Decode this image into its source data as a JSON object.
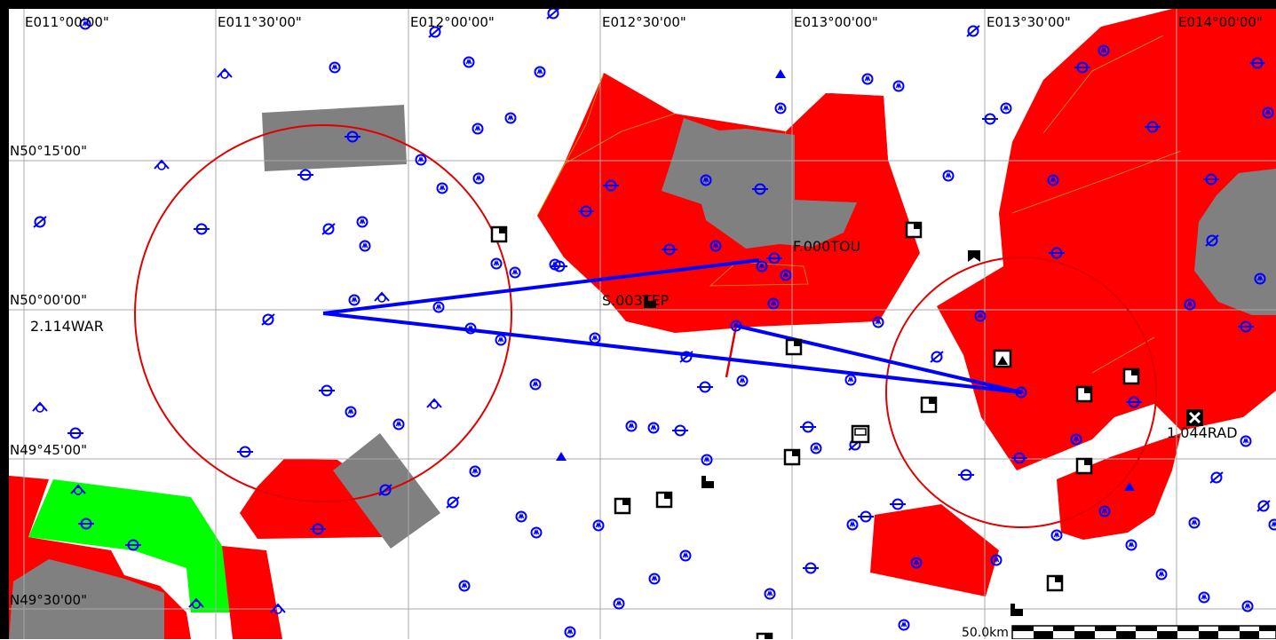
{
  "map": {
    "grid": {
      "lon_labels": [
        "E011°00'00\"",
        "E011°30'00\"",
        "E012°00'00\"",
        "E012°30'00\"",
        "E013°00'00\"",
        "E013°30'00\"",
        "E014°00'00\""
      ],
      "lat_labels": [
        "N50°15'00\"",
        "N50°00'00\"",
        "N49°45'00\"",
        "N49°30'00\""
      ]
    },
    "waypoints": {
      "war": "2.114WAR",
      "tou": "F.000TOU",
      "tep": "S.003TEP",
      "rad": "1.044RAD"
    },
    "scale_bar": {
      "label": "50.0km"
    },
    "colors": {
      "restricted_area": "#ff0000",
      "terrain_area": "#808080",
      "green_area": "#00ff00",
      "route": "#0000ff",
      "navaid": "#0000ff",
      "grid": "#b0b0b0",
      "frame": "#000000"
    },
    "icons": [
      "vor-icon",
      "ndb-icon",
      "airfield-icon",
      "outlanding-icon",
      "mountain-peak-icon",
      "antenna-icon",
      "navaid-triangle-icon"
    ]
  }
}
